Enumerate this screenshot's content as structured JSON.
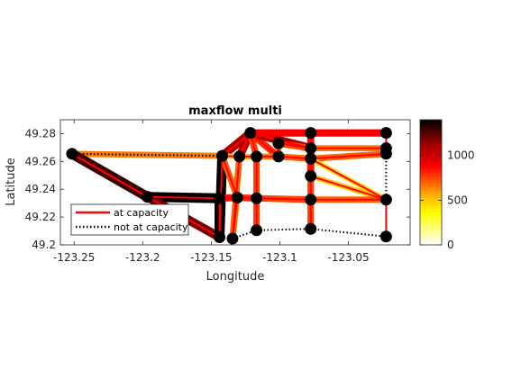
{
  "chart_data": {
    "type": "network-graph",
    "title": "maxflow multi",
    "xlabel": "Longitude",
    "ylabel": "Latitude",
    "xlim": [
      -123.26,
      -123.005
    ],
    "ylim": [
      49.2,
      49.29
    ],
    "xticks": [
      -123.25,
      -123.2,
      -123.15,
      -123.1,
      -123.05
    ],
    "xtick_labels": [
      "-123.25",
      "-123.2",
      "-123.15",
      "-123.1",
      "-123.05"
    ],
    "yticks": [
      49.2,
      49.22,
      49.24,
      49.26,
      49.28
    ],
    "ytick_labels": [
      "49.2",
      "49.22",
      "49.24",
      "49.26",
      "49.28"
    ],
    "colorbar": {
      "colormap": "hot",
      "range": [
        0,
        1400
      ],
      "ticks": [
        0,
        500,
        1000
      ],
      "tick_labels": [
        "0",
        "500",
        "1000"
      ]
    },
    "legend": {
      "placement": "bottom-left",
      "entries": [
        {
          "label": "at capacity",
          "style": "solid",
          "color": "#ff0000"
        },
        {
          "label": "not at capacity",
          "style": "dotted",
          "color": "#000000"
        }
      ]
    },
    "nodes": [
      {
        "id": "n1",
        "x": -123.2515,
        "y": 49.2655
      },
      {
        "id": "n2",
        "x": -123.1965,
        "y": 49.2345
      },
      {
        "id": "n3",
        "x": -123.144,
        "y": 49.2335
      },
      {
        "id": "n4",
        "x": -123.144,
        "y": 49.2055
      },
      {
        "id": "n5",
        "x": -123.142,
        "y": 49.264
      },
      {
        "id": "n6",
        "x": -123.1345,
        "y": 49.2045
      },
      {
        "id": "n7",
        "x": -123.131,
        "y": 49.234
      },
      {
        "id": "n8",
        "x": -123.1295,
        "y": 49.2635
      },
      {
        "id": "n9",
        "x": -123.1215,
        "y": 49.2805
      },
      {
        "id": "n10",
        "x": -123.117,
        "y": 49.2635
      },
      {
        "id": "n11",
        "x": -123.117,
        "y": 49.2335
      },
      {
        "id": "n12",
        "x": -123.117,
        "y": 49.2105
      },
      {
        "id": "n13",
        "x": -123.101,
        "y": 49.273
      },
      {
        "id": "n14",
        "x": -123.101,
        "y": 49.2635
      },
      {
        "id": "n15",
        "x": -123.0775,
        "y": 49.2805
      },
      {
        "id": "n16",
        "x": -123.0775,
        "y": 49.2695
      },
      {
        "id": "n17",
        "x": -123.0775,
        "y": 49.262
      },
      {
        "id": "n18",
        "x": -123.0775,
        "y": 49.2495
      },
      {
        "id": "n19",
        "x": -123.0775,
        "y": 49.2325
      },
      {
        "id": "n20",
        "x": -123.0775,
        "y": 49.2115
      },
      {
        "id": "n21",
        "x": -123.0225,
        "y": 49.2805
      },
      {
        "id": "n22",
        "x": -123.0225,
        "y": 49.2695
      },
      {
        "id": "n23",
        "x": -123.0225,
        "y": 49.2655
      },
      {
        "id": "n24",
        "x": -123.0225,
        "y": 49.2325
      },
      {
        "id": "n25",
        "x": -123.0225,
        "y": 49.206
      }
    ],
    "edges": [
      {
        "from": "n1",
        "to": "n5",
        "flow": 650,
        "at_capacity": false
      },
      {
        "from": "n1",
        "to": "n2",
        "flow": 1400,
        "at_capacity": true
      },
      {
        "from": "n1",
        "to": "n2",
        "flow": 1300,
        "at_capacity": true
      },
      {
        "from": "n2",
        "to": "n3",
        "flow": 1400,
        "at_capacity": true
      },
      {
        "from": "n2",
        "to": "n4",
        "flow": 1200,
        "at_capacity": true
      },
      {
        "from": "n3",
        "to": "n4",
        "flow": 1400,
        "at_capacity": true
      },
      {
        "from": "n5",
        "to": "n4",
        "flow": 1400,
        "at_capacity": true
      },
      {
        "from": "n5",
        "to": "n9",
        "flow": 1100,
        "at_capacity": true
      },
      {
        "from": "n5",
        "to": "n8",
        "flow": 500,
        "at_capacity": true
      },
      {
        "from": "n5",
        "to": "n7",
        "flow": 700,
        "at_capacity": true
      },
      {
        "from": "n7",
        "to": "n6",
        "flow": 600,
        "at_capacity": true
      },
      {
        "from": "n8",
        "to": "n6",
        "flow": 700,
        "at_capacity": true
      },
      {
        "from": "n8",
        "to": "n10",
        "flow": 550,
        "at_capacity": true
      },
      {
        "from": "n8",
        "to": "n9",
        "flow": 1050,
        "at_capacity": true
      },
      {
        "from": "n9",
        "to": "n10",
        "flow": 750,
        "at_capacity": true
      },
      {
        "from": "n9",
        "to": "n14",
        "flow": 800,
        "at_capacity": true
      },
      {
        "from": "n9",
        "to": "n16",
        "flow": 1100,
        "at_capacity": true
      },
      {
        "from": "n9",
        "to": "n15",
        "flow": 900,
        "at_capacity": true
      },
      {
        "from": "n10",
        "to": "n11",
        "flow": 750,
        "at_capacity": true
      },
      {
        "from": "n10",
        "to": "n14",
        "flow": 650,
        "at_capacity": true
      },
      {
        "from": "n12",
        "to": "n11",
        "flow": 750,
        "at_capacity": true
      },
      {
        "from": "n13",
        "to": "n14",
        "flow": 650,
        "at_capacity": true
      },
      {
        "from": "n13",
        "to": "n16",
        "flow": 750,
        "at_capacity": true
      },
      {
        "from": "n14",
        "to": "n17",
        "flow": 700,
        "at_capacity": true
      },
      {
        "from": "n15",
        "to": "n16",
        "flow": 850,
        "at_capacity": true
      },
      {
        "from": "n15",
        "to": "n21",
        "flow": 900,
        "at_capacity": true
      },
      {
        "from": "n16",
        "to": "n17",
        "flow": 800,
        "at_capacity": true
      },
      {
        "from": "n16",
        "to": "n22",
        "flow": 650,
        "at_capacity": true
      },
      {
        "from": "n17",
        "to": "n18",
        "flow": 850,
        "at_capacity": true
      },
      {
        "from": "n17",
        "to": "n23",
        "flow": 700,
        "at_capacity": true
      },
      {
        "from": "n17",
        "to": "n24",
        "flow": 450,
        "at_capacity": true
      },
      {
        "from": "n18",
        "to": "n19",
        "flow": 750,
        "at_capacity": true
      },
      {
        "from": "n18",
        "to": "n24",
        "flow": 500,
        "at_capacity": true
      },
      {
        "from": "n3",
        "to": "n7",
        "flow": 850,
        "at_capacity": true
      },
      {
        "from": "n7",
        "to": "n11",
        "flow": 800,
        "at_capacity": true
      },
      {
        "from": "n11",
        "to": "n19",
        "flow": 750,
        "at_capacity": true
      },
      {
        "from": "n19",
        "to": "n24",
        "flow": 700,
        "at_capacity": true
      },
      {
        "from": "n19",
        "to": "n20",
        "flow": 750,
        "at_capacity": true
      },
      {
        "from": "n24",
        "to": "n25",
        "flow": 0,
        "at_capacity": true
      },
      {
        "from": "n21",
        "to": "n22",
        "flow": 0,
        "at_capacity": true
      },
      {
        "from": "n22",
        "to": "n23",
        "flow": 0,
        "at_capacity": false
      },
      {
        "from": "n23",
        "to": "n24",
        "flow": 0,
        "at_capacity": false
      },
      {
        "from": "n6",
        "to": "n12",
        "flow": 0,
        "at_capacity": false
      },
      {
        "from": "n12",
        "to": "n20",
        "flow": 0,
        "at_capacity": false
      },
      {
        "from": "n20",
        "to": "n25",
        "flow": 0,
        "at_capacity": false
      }
    ]
  }
}
